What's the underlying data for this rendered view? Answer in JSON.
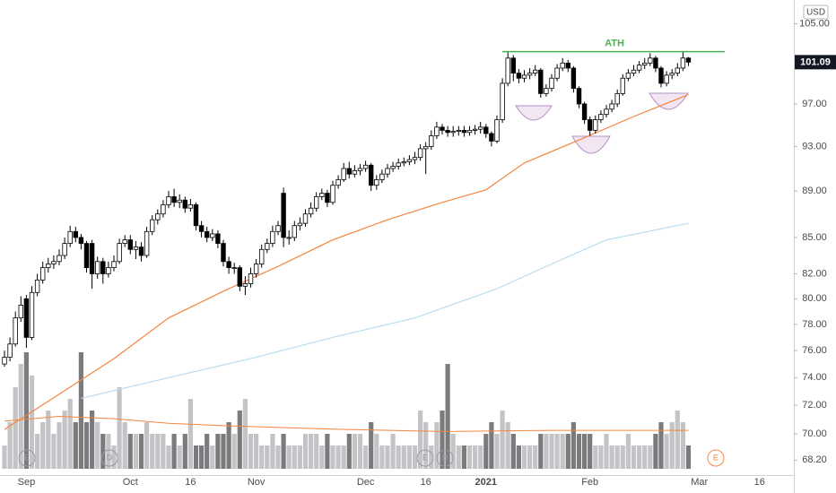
{
  "chart_data": {
    "type": "candlestick",
    "currency": "USD",
    "log_scale": true,
    "ylim": [
      67.2,
      107.5
    ],
    "yticks": [
      {
        "value": 105,
        "label": "105.00"
      },
      {
        "value": 97,
        "label": "97.00"
      },
      {
        "value": 93,
        "label": "93.00"
      },
      {
        "value": 89,
        "label": "89.00"
      },
      {
        "value": 85,
        "label": "85.00"
      },
      {
        "value": 82,
        "label": "82.00"
      },
      {
        "value": 80,
        "label": "80.00"
      },
      {
        "value": 78,
        "label": "78.00"
      },
      {
        "value": 76,
        "label": "76.00"
      },
      {
        "value": 74,
        "label": "74.00"
      },
      {
        "value": 72,
        "label": "72.00"
      },
      {
        "value": 70,
        "label": "70.00"
      },
      {
        "value": 68.2,
        "label": "68.20"
      }
    ],
    "last_price": 101.09,
    "up_color": "#ffffff",
    "down_color": "#000000",
    "volume_up_color": "#c4c4c8",
    "volume_down_color": "#7b7b7d",
    "categories": [
      null,
      null,
      null,
      null,
      "Sep",
      null,
      null,
      null,
      null,
      null,
      null,
      null,
      null,
      null,
      null,
      null,
      null,
      null,
      null,
      null,
      null,
      null,
      null,
      "Oct",
      null,
      null,
      null,
      null,
      null,
      null,
      null,
      null,
      null,
      null,
      "16",
      null,
      null,
      null,
      null,
      null,
      null,
      null,
      null,
      null,
      null,
      null,
      "Nov",
      null,
      null,
      null,
      null,
      null,
      null,
      null,
      null,
      null,
      null,
      null,
      null,
      null,
      null,
      null,
      null,
      null,
      null,
      null,
      "Dec",
      null,
      null,
      null,
      null,
      null,
      null,
      null,
      null,
      null,
      null,
      "16",
      null,
      null,
      null,
      null,
      null,
      null,
      null,
      null,
      null,
      null,
      "2021",
      null,
      null,
      null,
      null,
      null,
      null,
      null,
      null,
      null,
      null,
      null,
      null,
      null,
      null,
      null,
      null,
      null,
      null,
      "Feb",
      null,
      null,
      null,
      null,
      null,
      null,
      null,
      null,
      null,
      null,
      null,
      null,
      null,
      null,
      null,
      null,
      null,
      null,
      null,
      "Mar",
      null,
      null,
      null,
      null,
      null,
      null,
      null,
      null,
      null,
      null,
      "16",
      null,
      null,
      null
    ],
    "open": [
      75,
      75.5,
      76.5,
      78.5,
      80,
      77,
      80.5,
      81.5,
      82.5,
      82.8,
      83,
      83.5,
      84.5,
      85.5,
      85,
      84.5,
      84.5,
      82,
      83,
      82,
      82.5,
      83,
      84.5,
      84.8,
      84,
      84.2,
      83.5,
      85.5,
      86.5,
      87,
      87.8,
      88.5,
      88,
      88.2,
      87.5,
      87.8,
      86,
      85.5,
      85,
      85.3,
      84.5,
      83,
      82.5,
      82.5,
      81,
      81.2,
      82,
      82.8,
      84,
      84.5,
      85.5,
      88.8,
      85,
      85,
      86,
      86.2,
      87,
      87.5,
      88.5,
      88.8,
      88,
      89.5,
      90,
      91,
      90.5,
      90.8,
      91,
      91.3,
      89.5,
      90,
      90.5,
      91,
      91.2,
      91.5,
      91.6,
      91.8,
      92,
      92.8,
      93,
      94,
      94.8,
      94.5,
      94.3,
      94.4,
      94.5,
      94.3,
      94.5,
      94.6,
      94.8,
      94.2,
      93.5,
      95.5,
      99,
      101.5,
      100,
      99.5,
      99.8,
      100,
      100.3,
      98,
      98.5,
      99.5,
      100.5,
      101,
      100.5,
      98.5,
      97,
      95.5,
      94.5,
      95.5,
      96,
      96.5,
      97,
      98,
      99.5,
      100,
      100.3,
      100.8,
      101,
      101.5,
      100.5,
      99,
      99.8,
      100,
      100.5,
      101.5,
      null,
      null,
      null,
      null,
      null,
      null,
      null,
      null,
      null,
      null,
      null,
      null,
      null,
      null,
      null,
      null
    ],
    "high": [
      76,
      77,
      79,
      80.2,
      80.3,
      81,
      82,
      83,
      83.3,
      83.5,
      84,
      85,
      86,
      85.9,
      85.3,
      84.7,
      84.8,
      83.4,
      83.3,
      83,
      83.5,
      84.9,
      85.2,
      85.2,
      84.7,
      84.6,
      85.9,
      86.9,
      87.4,
      88.2,
      89,
      89.2,
      88.7,
      88.5,
      88.3,
      88,
      86.4,
      85.9,
      85.7,
      85.6,
      84.8,
      83.4,
      82.9,
      82.7,
      81.8,
      82.5,
      83.2,
      84.4,
      84.9,
      86,
      86.4,
      89.3,
      85.6,
      86.4,
      86.7,
      87.4,
      88,
      88.9,
      89.2,
      89.1,
      89.9,
      90.4,
      91.5,
      91.6,
      91.3,
      91.4,
      91.7,
      91.5,
      90.4,
      90.9,
      91.4,
      91.6,
      91.9,
      92,
      92.2,
      92.5,
      93.2,
      93.4,
      94.5,
      95.3,
      95.1,
      94.9,
      94.9,
      94.9,
      94.9,
      94.9,
      95,
      95.3,
      95.1,
      94.4,
      95.9,
      99.5,
      102.1,
      101.8,
      100.4,
      100.3,
      100.5,
      100.8,
      100.5,
      98.9,
      99.9,
      100.9,
      101.5,
      101.3,
      100.7,
      98.7,
      97.2,
      95.8,
      95.9,
      96.4,
      96.9,
      97.4,
      98.4,
      99.9,
      100.4,
      100.8,
      101.2,
      101.5,
      102,
      101.7,
      100.7,
      100.2,
      100.4,
      101,
      102.2,
      101.6,
      null,
      null,
      null,
      null,
      null,
      null,
      null,
      null,
      null,
      null,
      null,
      null,
      null,
      null,
      null,
      null
    ],
    "low": [
      74.8,
      75.2,
      76.3,
      78.2,
      76.2,
      76.8,
      80.2,
      81.2,
      82.1,
      82.4,
      82.7,
      83.2,
      84.2,
      84.6,
      84,
      82.1,
      80.8,
      81.6,
      81.2,
      81.7,
      82.2,
      82.8,
      84.2,
      83.6,
      83.2,
      83,
      83.3,
      85.2,
      86.1,
      86.7,
      87.5,
      87.6,
      87.5,
      87.1,
      87.2,
      85.6,
      85,
      84.6,
      84.7,
      84.1,
      82.6,
      82,
      82,
      80.6,
      80.3,
      80.9,
      81.7,
      82.5,
      83.7,
      84.2,
      85.2,
      84.2,
      84.4,
      84.7,
      85.6,
      85.9,
      86.7,
      87.2,
      88.2,
      87.6,
      87.8,
      89.2,
      89.8,
      90.1,
      90.2,
      90.4,
      90.7,
      89,
      89.1,
      89.7,
      90.2,
      90.7,
      90.9,
      91.2,
      91.3,
      91.4,
      91.7,
      90.5,
      92.7,
      93.7,
      94.1,
      93.9,
      93.9,
      94,
      93.9,
      94,
      94.1,
      94.2,
      93.8,
      93,
      93.3,
      95.2,
      98.7,
      99.2,
      99,
      99.1,
      99.4,
      99.7,
      97.6,
      97.7,
      98.2,
      99.2,
      100.2,
      100.1,
      98.1,
      96.6,
      95.1,
      94,
      94.2,
      95.2,
      95.7,
      96.2,
      96.7,
      97.8,
      99.2,
      99.7,
      100,
      100.4,
      100.7,
      100.1,
      98.6,
      98.7,
      99.4,
      99.7,
      100.2,
      100.7,
      null,
      null,
      null,
      null,
      null,
      null,
      null,
      null,
      null,
      null,
      null,
      null,
      null,
      null,
      null,
      null
    ],
    "close": [
      75.5,
      76.5,
      78.5,
      79.5,
      77,
      80.5,
      81.5,
      82.5,
      82.8,
      83,
      83.5,
      84.5,
      85.5,
      85,
      84.5,
      82.5,
      82,
      83,
      82,
      82.5,
      83,
      84.5,
      84.8,
      84,
      84.2,
      83.5,
      85.5,
      86.5,
      87,
      87.8,
      88.5,
      88,
      88.2,
      87.5,
      87.8,
      86,
      85.5,
      85,
      85.3,
      84.5,
      83,
      82.5,
      82.5,
      81,
      81.2,
      82,
      82.8,
      84,
      84.5,
      85.5,
      86,
      85,
      85,
      86,
      86.2,
      87,
      87.5,
      88.5,
      88.8,
      88,
      89.5,
      90,
      91,
      90.5,
      90.8,
      91,
      91.3,
      89.5,
      90,
      90.5,
      91,
      91.2,
      91.5,
      91.6,
      91.8,
      92,
      92.8,
      93,
      94,
      94.8,
      94.5,
      94.3,
      94.4,
      94.5,
      94.3,
      94.5,
      94.6,
      94.8,
      94.2,
      93.5,
      95.5,
      99,
      101.5,
      100,
      99.5,
      99.8,
      100,
      100.3,
      98,
      98.5,
      99.5,
      100.5,
      101,
      100.5,
      98.5,
      97,
      95.5,
      94.5,
      95.5,
      96,
      96.5,
      97,
      98,
      99.5,
      100,
      100.3,
      100.8,
      101,
      101.5,
      100.5,
      99,
      99.8,
      100,
      100.5,
      101.5,
      101.09,
      null,
      null,
      null,
      null,
      null,
      null,
      null,
      null,
      null,
      null,
      null,
      null,
      null,
      null,
      null,
      null
    ],
    "volume": [
      2,
      4,
      7,
      9,
      10,
      8,
      3,
      4,
      5,
      3,
      4,
      5,
      6,
      4,
      10,
      4,
      5,
      4,
      3,
      3,
      2,
      7,
      4,
      3,
      3,
      3,
      4,
      3,
      3,
      3,
      2,
      3,
      2,
      3,
      6,
      2,
      2,
      3,
      2,
      3,
      3,
      4,
      3,
      5,
      6,
      3,
      3,
      2,
      2,
      3,
      2,
      3,
      2,
      2,
      2,
      3,
      3,
      3,
      2,
      3,
      2,
      2,
      2,
      3,
      3,
      3,
      2,
      4,
      3,
      2,
      2,
      3,
      2,
      2,
      2,
      2,
      5,
      4,
      2,
      4,
      5,
      9,
      3,
      2,
      2,
      2,
      2,
      2,
      3,
      4,
      3,
      5,
      4,
      3,
      2,
      2,
      2,
      2,
      3,
      3,
      3,
      3,
      3,
      3,
      4,
      3,
      3,
      3,
      2,
      2,
      3,
      2,
      2,
      2,
      3,
      2,
      2,
      2,
      2,
      3,
      4,
      3,
      4,
      5,
      4,
      2,
      null,
      null,
      null,
      null,
      null,
      null,
      null,
      null,
      null,
      null,
      null,
      null,
      null,
      null,
      null,
      null
    ],
    "overlays": [
      {
        "color": "#f4863f",
        "x": [
          0,
          10,
          20,
          30,
          40,
          50,
          60,
          70,
          80,
          88,
          95,
          105,
          115,
          125
        ],
        "values": [
          70.3,
          72.8,
          75.4,
          78.5,
          80.6,
          82.6,
          84.8,
          86.5,
          88,
          89.1,
          91.5,
          93.6,
          95.8,
          97.9
        ]
      },
      {
        "color": "#bcdcf0",
        "x": [
          14,
          30,
          45,
          60,
          75,
          90,
          100,
          110,
          125
        ],
        "values": [
          72.5,
          74,
          75.4,
          77,
          78.5,
          80.8,
          82.8,
          84.8,
          86.2
        ]
      }
    ],
    "volume_average": {
      "color": "#f4863f",
      "x": [
        0,
        10,
        20,
        30,
        40,
        60,
        80,
        100,
        125
      ],
      "values": [
        4.1,
        4.5,
        4.3,
        3.9,
        3.7,
        3.4,
        3.2,
        3.3,
        3.3
      ]
    },
    "annotations": {
      "ath": {
        "label": "ATH",
        "value": 102.15,
        "color": "#4caf50"
      }
    },
    "events": [
      "E",
      "D",
      "E",
      "D",
      "E"
    ]
  }
}
